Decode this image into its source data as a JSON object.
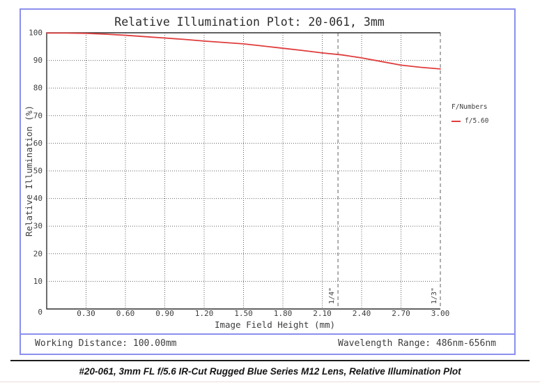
{
  "chart_data": {
    "type": "line",
    "title": "Relative Illumination Plot: 20-061, 3mm",
    "xlabel": "Image Field Height (mm)",
    "ylabel": "Relative Illumination (%)",
    "xlim": [
      0,
      3.0
    ],
    "ylim": [
      0,
      100
    ],
    "grid": true,
    "grid_style": "dotted",
    "xticks": [
      {
        "value": 0.3,
        "label": "0.30"
      },
      {
        "value": 0.6,
        "label": "0.60"
      },
      {
        "value": 0.9,
        "label": "0.90"
      },
      {
        "value": 1.2,
        "label": "1.20"
      },
      {
        "value": 1.5,
        "label": "1.50"
      },
      {
        "value": 1.8,
        "label": "1.80"
      },
      {
        "value": 2.1,
        "label": "2.10"
      },
      {
        "value": 2.4,
        "label": "2.40"
      },
      {
        "value": 2.7,
        "label": "2.70"
      },
      {
        "value": 3.0,
        "label": "3.00"
      }
    ],
    "yticks": [
      {
        "value": 0,
        "label": "0"
      },
      {
        "value": 10,
        "label": "10"
      },
      {
        "value": 20,
        "label": "20"
      },
      {
        "value": 30,
        "label": "30"
      },
      {
        "value": 40,
        "label": "40"
      },
      {
        "value": 50,
        "label": "50"
      },
      {
        "value": 60,
        "label": "60"
      },
      {
        "value": 70,
        "label": "70"
      },
      {
        "value": 80,
        "label": "80"
      },
      {
        "value": 90,
        "label": "90"
      },
      {
        "value": 100,
        "label": "100"
      }
    ],
    "legend": {
      "title": "F/Numbers",
      "position": "right-outside",
      "entries": [
        {
          "label": "f/5.60",
          "color": "#e03c3c"
        }
      ]
    },
    "series": [
      {
        "name": "f/5.60",
        "color": "#e03c3c",
        "x": [
          0.0,
          0.15,
          0.3,
          0.45,
          0.6,
          0.75,
          0.9,
          1.05,
          1.2,
          1.35,
          1.5,
          1.65,
          1.8,
          1.95,
          2.1,
          2.25,
          2.4,
          2.55,
          2.7,
          2.85,
          3.0
        ],
        "y": [
          99.9,
          99.9,
          99.8,
          99.5,
          99.1,
          98.6,
          98.1,
          97.6,
          97.0,
          96.5,
          96.0,
          95.2,
          94.4,
          93.6,
          92.7,
          92.0,
          90.9,
          89.6,
          88.3,
          87.5,
          86.9
        ]
      }
    ],
    "sensor_markers": [
      {
        "label": "1/4\"",
        "x": 2.22
      },
      {
        "label": "1/3\"",
        "x": 3.0
      }
    ]
  },
  "footer": {
    "working_distance": "Working Distance: 100.00mm",
    "wavelength_range": "Wavelength Range: 486nm-656nm"
  },
  "caption": {
    "text": "#20-061, 3mm FL f/5.6 IR-Cut Rugged Blue Series M12 Lens, Relative Illumination Plot"
  },
  "colors": {
    "frame_border": "#8b8fee",
    "curve": "#e03c3c",
    "axis": "#3a3a3a",
    "grid": "#606060",
    "caption_rule": "#1c1c1c"
  }
}
